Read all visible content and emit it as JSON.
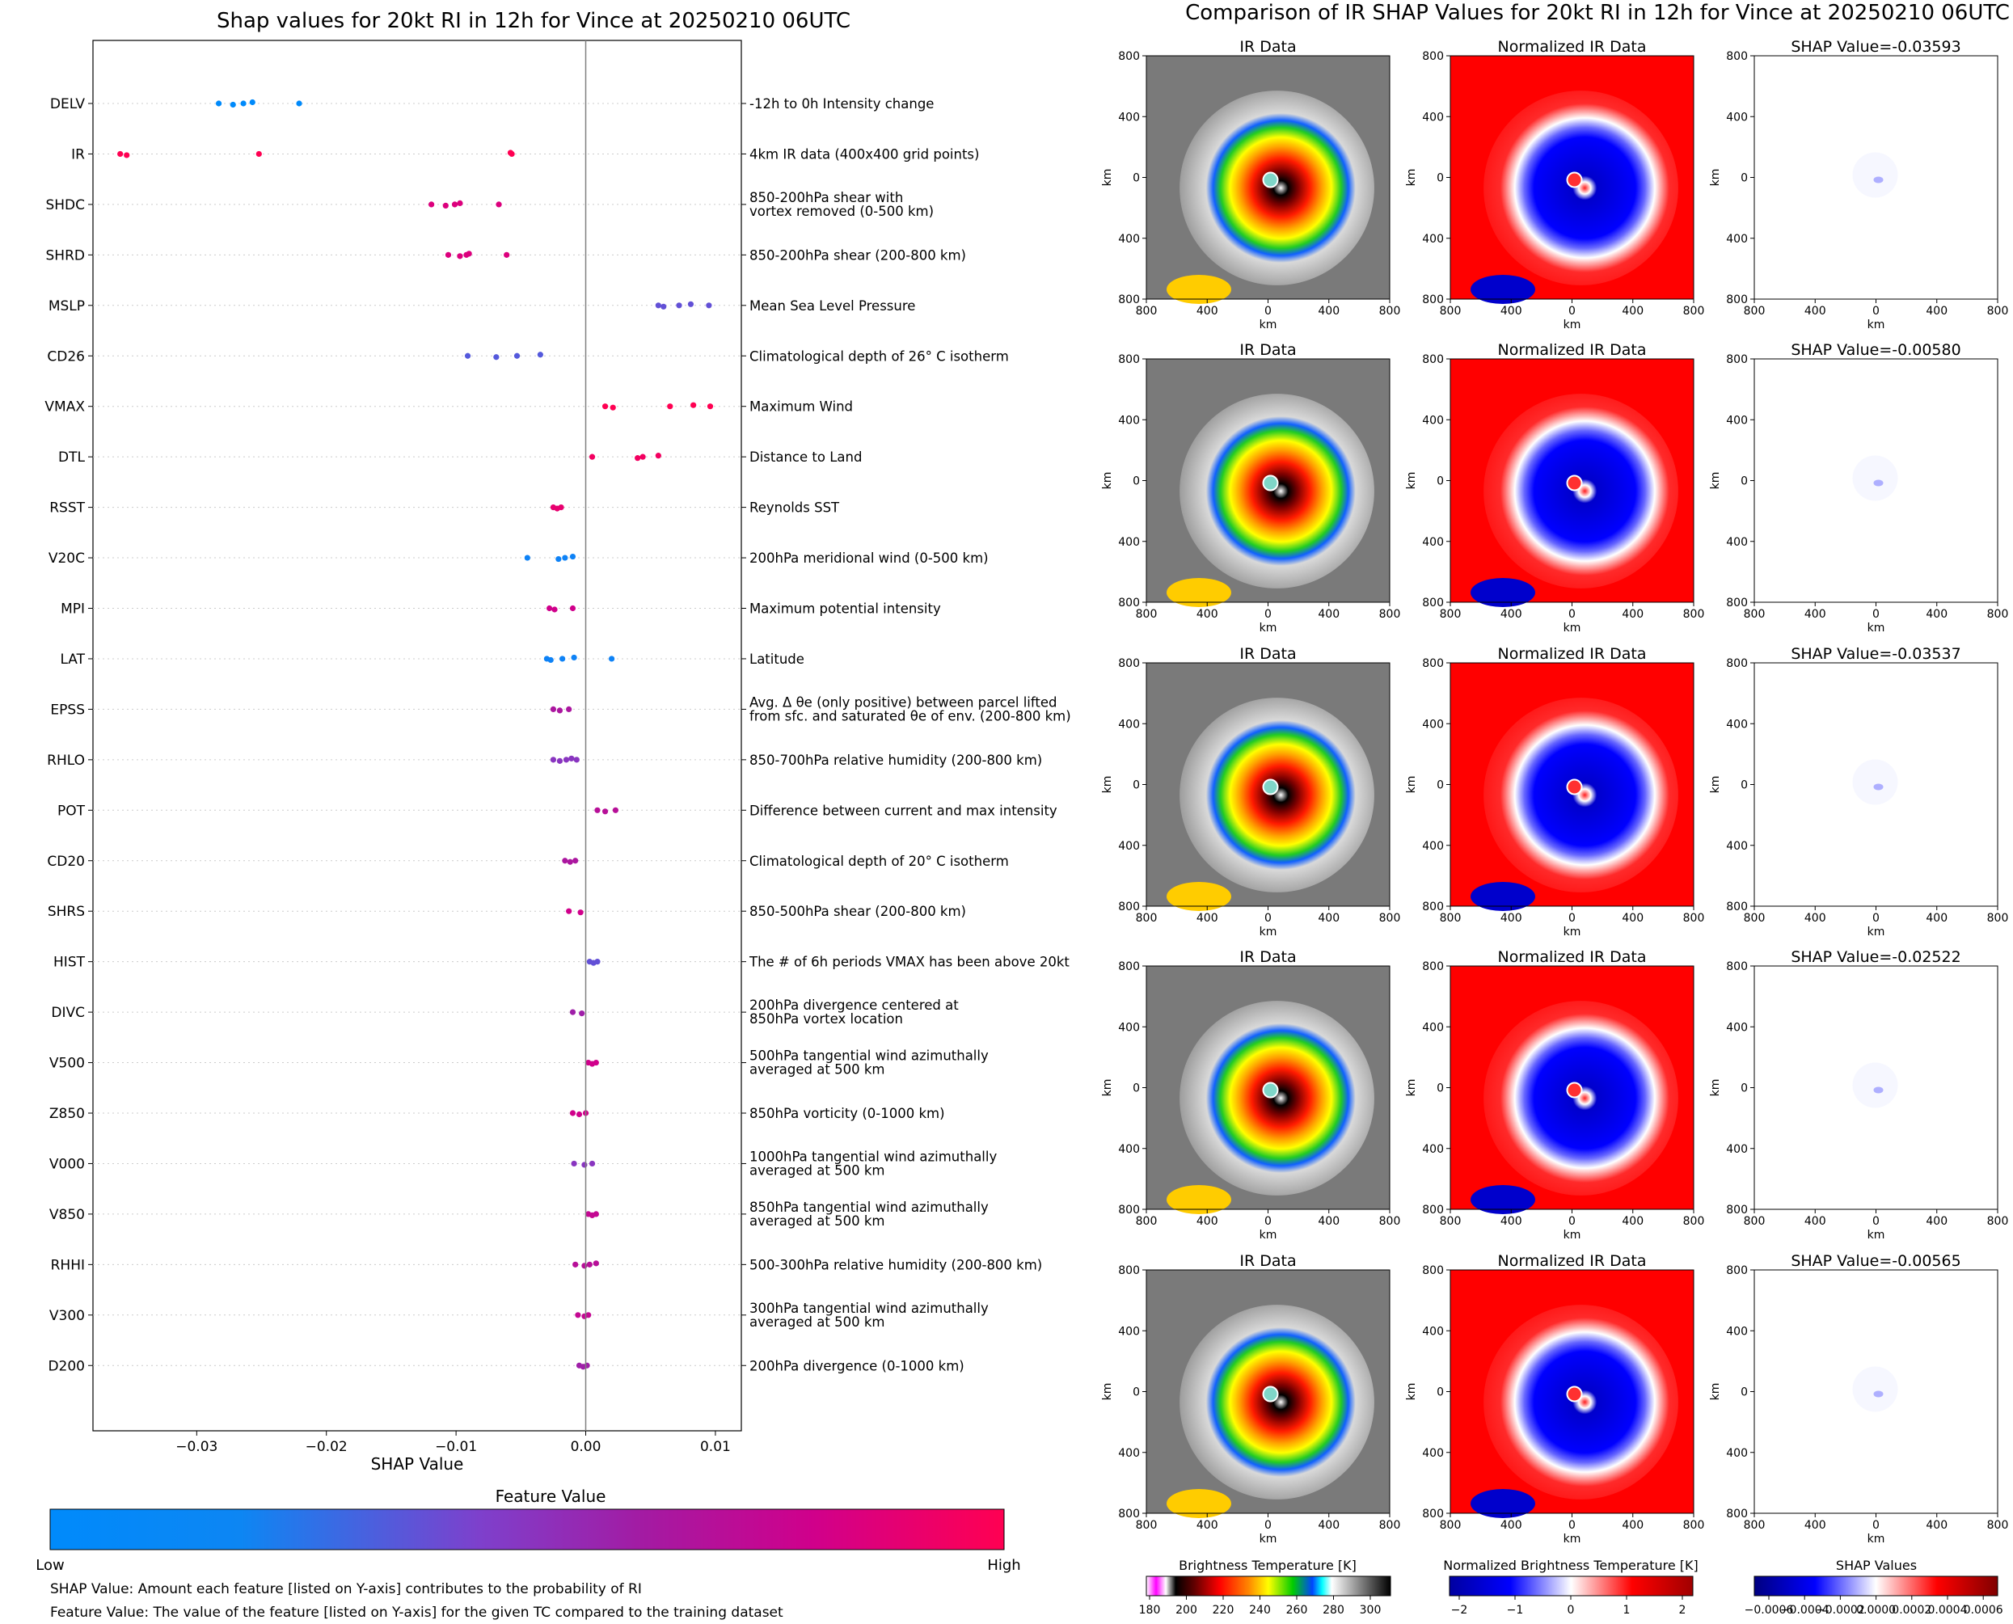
{
  "colors": {
    "low": "#008afb",
    "mid": "#7e40cc",
    "mid2": "#a31ba3",
    "high": "#ff0052"
  },
  "shap_panel": {
    "title": "Shap values for 20kt RI in 12h for Vince at 20250210 06UTC",
    "colorbar_title": "Feature Value",
    "colorbar_low": "Low",
    "colorbar_high": "High",
    "note1": "SHAP Value: Amount each feature [listed on Y-axis] contributes to the probability of RI",
    "note2": "Feature Value: The value of the feature [listed on Y-axis] for the given TC compared to the training dataset"
  },
  "ir_panel": {
    "title": "Comparison of IR SHAP Values for 20kt RI in 12h for Vince at 20250210 06UTC",
    "col_titles": [
      "IR Data",
      "Normalized IR Data"
    ],
    "shap_titles": [
      "SHAP Value=-0.03593",
      "SHAP Value=-0.00580",
      "SHAP Value=-0.03537",
      "SHAP Value=-0.02522",
      "SHAP Value=-0.00565"
    ],
    "axis_label": "km",
    "tick_labels": [
      "800",
      "400",
      "0",
      "400",
      "800"
    ],
    "colorbars": [
      {
        "label": "Brightness Temperature [K]",
        "ticks": [
          "180",
          "200",
          "220",
          "240",
          "260",
          "280",
          "300"
        ]
      },
      {
        "label": "Normalized Brightness Temperature [K]",
        "ticks": [
          "−2",
          "−1",
          "0",
          "1",
          "2"
        ]
      },
      {
        "label": "SHAP Values",
        "ticks": [
          "−0.0006",
          "−0.0004",
          "−0.0002",
          "0.0000",
          "0.0002",
          "0.0004",
          "0.0006"
        ]
      }
    ]
  },
  "chart_data": {
    "type": "scatter",
    "title": "Shap values for 20kt RI in 12h for Vince at 20250210 06UTC",
    "xlabel": "SHAP Value",
    "ylabel": "",
    "xlim": [
      -0.038,
      0.012
    ],
    "xticks": [
      -0.03,
      -0.02,
      -0.01,
      0.0,
      0.01
    ],
    "xtick_labels": [
      "−0.03",
      "−0.02",
      "−0.01",
      "0.00",
      "0.01"
    ],
    "features": [
      {
        "name": "DELV",
        "desc": "-12h to 0h Intensity change",
        "fv": 0.0,
        "values": [
          -0.0283,
          -0.0272,
          -0.0264,
          -0.0257,
          -0.0221
        ]
      },
      {
        "name": "IR",
        "desc": "4km IR data (400x400 grid points)",
        "fv": 1.0,
        "values": [
          -0.0359,
          -0.0354,
          -0.0252,
          -0.0058,
          -0.0057
        ]
      },
      {
        "name": "SHDC",
        "desc": "850-200hPa shear with\nvortex removed (0-500 km)",
        "fv": 0.85,
        "values": [
          -0.0119,
          -0.0108,
          -0.0101,
          -0.0097,
          -0.0067
        ]
      },
      {
        "name": "SHRD",
        "desc": "850-200hPa shear (200-800 km)",
        "fv": 0.85,
        "values": [
          -0.0106,
          -0.0097,
          -0.0092,
          -0.009,
          -0.0061
        ]
      },
      {
        "name": "MSLP",
        "desc": "Mean Sea Level Pressure",
        "fv": 0.35,
        "values": [
          0.0056,
          0.006,
          0.0072,
          0.0081,
          0.0095
        ]
      },
      {
        "name": "CD26",
        "desc": "Climatological depth of 26° C isotherm",
        "fv": 0.3,
        "values": [
          -0.0091,
          -0.0069,
          -0.0053,
          -0.0035
        ]
      },
      {
        "name": "VMAX",
        "desc": "Maximum Wind",
        "fv": 1.0,
        "values": [
          0.0015,
          0.0021,
          0.0065,
          0.0083,
          0.0096
        ]
      },
      {
        "name": "DTL",
        "desc": "Distance to Land",
        "fv": 0.95,
        "values": [
          0.0005,
          0.004,
          0.0044,
          0.0056
        ]
      },
      {
        "name": "RSST",
        "desc": "Reynolds SST",
        "fv": 0.9,
        "values": [
          -0.0025,
          -0.0022,
          -0.0019
        ]
      },
      {
        "name": "V20C",
        "desc": "200hPa meridional wind (0-500 km)",
        "fv": 0.05,
        "values": [
          -0.0045,
          -0.0021,
          -0.0016,
          -0.001
        ]
      },
      {
        "name": "MPI",
        "desc": "Maximum potential intensity",
        "fv": 0.8,
        "values": [
          -0.0028,
          -0.0024,
          -0.001
        ]
      },
      {
        "name": "LAT",
        "desc": "Latitude",
        "fv": 0.05,
        "values": [
          -0.003,
          -0.0027,
          -0.0018,
          -0.0009,
          0.002
        ]
      },
      {
        "name": "EPSS",
        "desc": "Avg. Δ θe (only positive) between parcel lifted\nfrom sfc. and saturated θe of env. (200-800 km)",
        "fv": 0.65,
        "values": [
          -0.0025,
          -0.002,
          -0.0013
        ]
      },
      {
        "name": "RHLO",
        "desc": "850-700hPa relative humidity (200-800 km)",
        "fv": 0.5,
        "values": [
          -0.0025,
          -0.002,
          -0.0015,
          -0.0011,
          -0.0007
        ]
      },
      {
        "name": "POT",
        "desc": "Difference between current and max intensity",
        "fv": 0.7,
        "values": [
          0.0009,
          0.0015,
          0.0023
        ]
      },
      {
        "name": "CD20",
        "desc": "Climatological depth of 20° C isotherm",
        "fv": 0.65,
        "values": [
          -0.0016,
          -0.0012,
          -0.0008
        ]
      },
      {
        "name": "SHRS",
        "desc": "850-500hPa shear (200-800 km)",
        "fv": 0.8,
        "values": [
          -0.0013,
          -0.0004
        ]
      },
      {
        "name": "HIST",
        "desc": "The # of 6h periods VMAX has been above 20kt",
        "fv": 0.35,
        "values": [
          0.0003,
          0.0006,
          0.0009
        ]
      },
      {
        "name": "DIVC",
        "desc": "200hPa divergence centered at\n850hPa vortex location",
        "fv": 0.6,
        "values": [
          -0.001,
          -0.0003
        ]
      },
      {
        "name": "V500",
        "desc": "500hPa tangential wind azimuthally\naveraged at 500 km",
        "fv": 0.8,
        "values": [
          0.0002,
          0.0005,
          0.0008
        ]
      },
      {
        "name": "Z850",
        "desc": "850hPa vorticity (0-1000 km)",
        "fv": 0.8,
        "values": [
          -0.001,
          -0.0005,
          0.0
        ]
      },
      {
        "name": "V000",
        "desc": "1000hPa tangential wind azimuthally\naveraged at 500 km",
        "fv": 0.5,
        "values": [
          -0.0009,
          -0.0001,
          0.0005
        ]
      },
      {
        "name": "V850",
        "desc": "850hPa tangential wind azimuthally\naveraged at 500 km",
        "fv": 0.75,
        "values": [
          0.0002,
          0.0005,
          0.0008
        ]
      },
      {
        "name": "RHHI",
        "desc": "500-300hPa relative humidity (200-800 km)",
        "fv": 0.7,
        "values": [
          -0.0008,
          -0.0001,
          0.0003,
          0.0008
        ]
      },
      {
        "name": "V300",
        "desc": "300hPa tangential wind azimuthally\naveraged at 500 km",
        "fv": 0.75,
        "values": [
          -0.0006,
          -0.0001,
          0.0002
        ]
      },
      {
        "name": "D200",
        "desc": "200hPa divergence (0-1000 km)",
        "fv": 0.6,
        "values": [
          -0.0005,
          -0.0002,
          0.0001
        ]
      }
    ]
  }
}
